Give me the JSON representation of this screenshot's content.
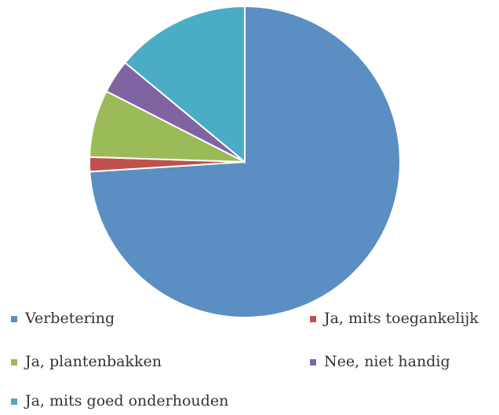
{
  "chart_data": {
    "type": "pie",
    "categories": [
      "Verbetering",
      "Ja, mits toegankelijk",
      "Ja, plantenbakken",
      "Nee, niet handig",
      "Ja, mits goed onderhouden"
    ],
    "values": [
      74,
      1.5,
      7,
      3.5,
      14
    ],
    "colors": [
      "#5b8ec2",
      "#c0504d",
      "#9bbb59",
      "#8064a2",
      "#4bacc6"
    ],
    "legend": "bottom"
  }
}
